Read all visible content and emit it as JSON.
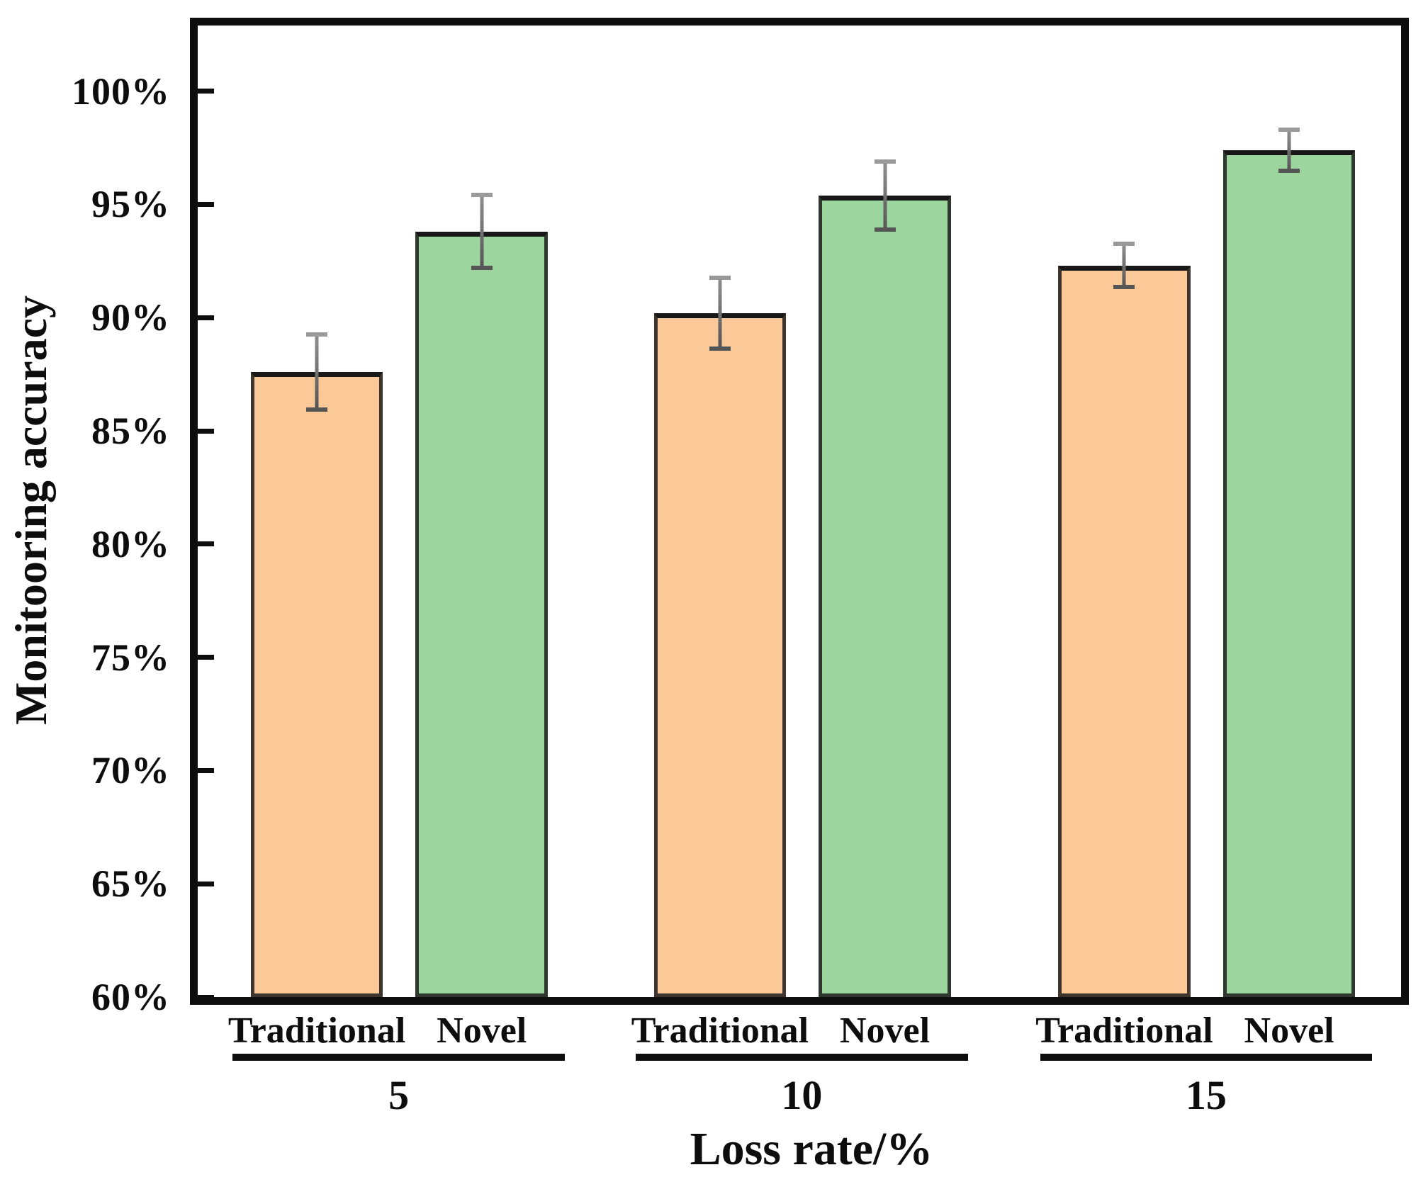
{
  "figure": {
    "background": "#ffffff",
    "axis_color": "#0d0d0d"
  },
  "chart_data": {
    "type": "bar",
    "title": "",
    "xlabel": "Loss rate/%",
    "ylabel": "Monitooring accuracy",
    "categories": [
      "5",
      "10",
      "15"
    ],
    "bar_labels": [
      "Traditional",
      "Novel"
    ],
    "series": [
      {
        "name": "Traditional",
        "color": "#FAC997",
        "values": [
          87.6,
          90.2,
          92.3
        ],
        "errors": [
          1.75,
          1.65,
          1.05
        ]
      },
      {
        "name": "Novel",
        "color": "#9CD59E",
        "values": [
          93.8,
          95.4,
          97.4
        ],
        "errors": [
          1.7,
          1.6,
          1.0
        ]
      }
    ],
    "ylim": [
      60,
      102.9
    ],
    "yticks": [
      {
        "value": 100,
        "label": "100%"
      },
      {
        "value": 95,
        "label": "95%"
      },
      {
        "value": 90,
        "label": "90%"
      },
      {
        "value": 85,
        "label": "85%"
      },
      {
        "value": 80,
        "label": "80%"
      },
      {
        "value": 75,
        "label": "75%"
      },
      {
        "value": 70,
        "label": "70%"
      },
      {
        "value": 65,
        "label": "65%"
      },
      {
        "value": 60,
        "label": "60%"
      }
    ],
    "grid": false,
    "legend": "none",
    "error_bar_color": "#6e6e6e"
  }
}
